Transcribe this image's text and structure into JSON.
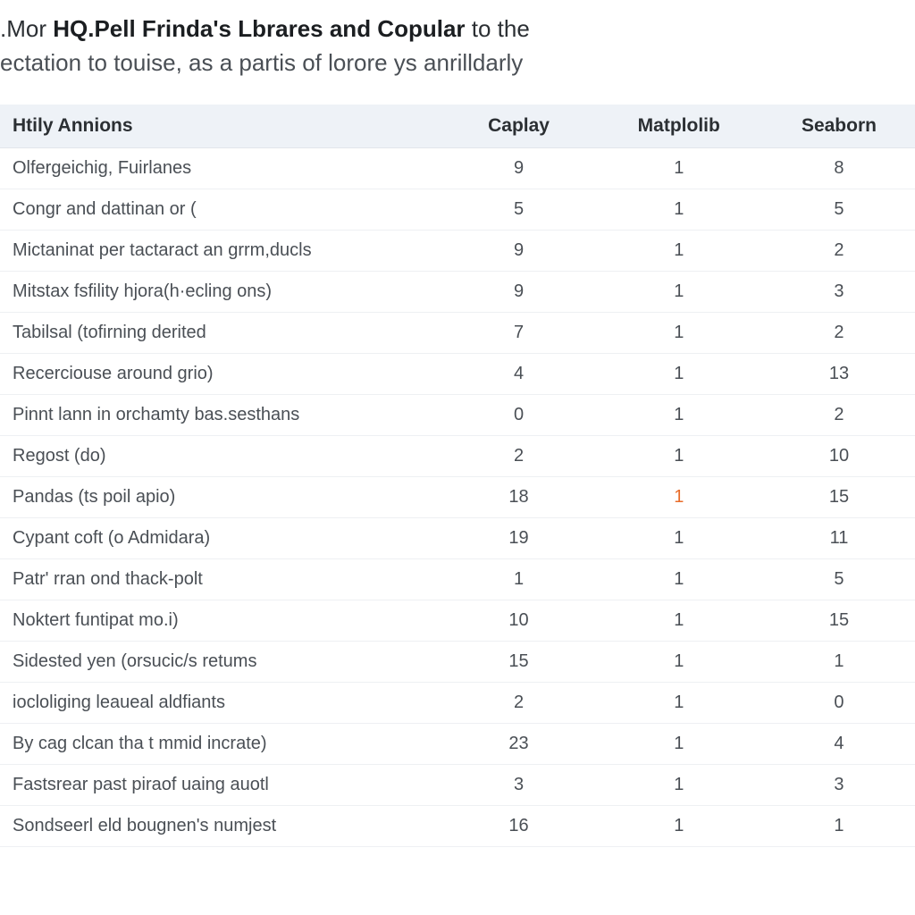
{
  "heading": {
    "prefix": ".Mor ",
    "bold": "HQ.Pell Frinda's Lbrares and Copular",
    "suffix": " to the",
    "line2": "ectation to touise, as a partis of lorore ys anrilldarly"
  },
  "table": {
    "columns": [
      "Htily Annions",
      "Caplay",
      "Matplolib",
      "Seaborn"
    ],
    "col_widths": [
      "48%",
      "17%",
      "18%",
      "17%"
    ],
    "header_bg": "#eef2f7",
    "row_border": "#eef0f3",
    "text_color": "#4a4f55",
    "header_text_color": "#2b2f33",
    "highlight_color": "#e86c2a",
    "font_size_header": 21,
    "font_size_body": 20,
    "rows": [
      {
        "name": "Olfergeichig, Fuirlanes",
        "a": 9,
        "b": 1,
        "c": 8,
        "hl": null
      },
      {
        "name": "Congr and dattinan or (",
        "a": 5,
        "b": 1,
        "c": 5,
        "hl": null
      },
      {
        "name": "Mictaninat per tactaract an grrm,ducls",
        "a": 9,
        "b": 1,
        "c": 2,
        "hl": null
      },
      {
        "name": "Mitstax fsfility hjora(h·ecling ons)",
        "a": 9,
        "b": 1,
        "c": 3,
        "hl": null
      },
      {
        "name": "Tabilsal (tofirning derited",
        "a": 7,
        "b": 1,
        "c": 2,
        "hl": null
      },
      {
        "name": "Recerciouse around grio)",
        "a": 4,
        "b": 1,
        "c": 13,
        "hl": null
      },
      {
        "name": "Pinnt lann in orchamty bas.sesthans",
        "a": 0,
        "b": 1,
        "c": 2,
        "hl": null
      },
      {
        "name": "Regost (do)",
        "a": 2,
        "b": 1,
        "c": 10,
        "hl": null
      },
      {
        "name": "Pandas (ts poil apio)",
        "a": 18,
        "b": 1,
        "c": 15,
        "hl": "b"
      },
      {
        "name": "Cypant coft (o Admidara)",
        "a": 19,
        "b": 1,
        "c": 11,
        "hl": null
      },
      {
        "name": "Patr' rran ond thack-polt",
        "a": 1,
        "b": 1,
        "c": 5,
        "hl": null
      },
      {
        "name": "Noktert funtipat mo.i)",
        "a": 10,
        "b": 1,
        "c": 15,
        "hl": null
      },
      {
        "name": "Sidested yen (orsucic/s retums",
        "a": 15,
        "b": 1,
        "c": 1,
        "hl": null
      },
      {
        "name": "iocloliging leaueal aldfiants",
        "a": 2,
        "b": 1,
        "c": 0,
        "hl": null
      },
      {
        "name": "By cag clcan tha t mmid incrate)",
        "a": 23,
        "b": 1,
        "c": 4,
        "hl": null
      },
      {
        "name": "Fastsrear past piraof uaing auotl",
        "a": 3,
        "b": 1,
        "c": 3,
        "hl": null
      },
      {
        "name": "Sondseerl eld bougnen's numjest",
        "a": 16,
        "b": 1,
        "c": 1,
        "hl": null
      }
    ]
  }
}
